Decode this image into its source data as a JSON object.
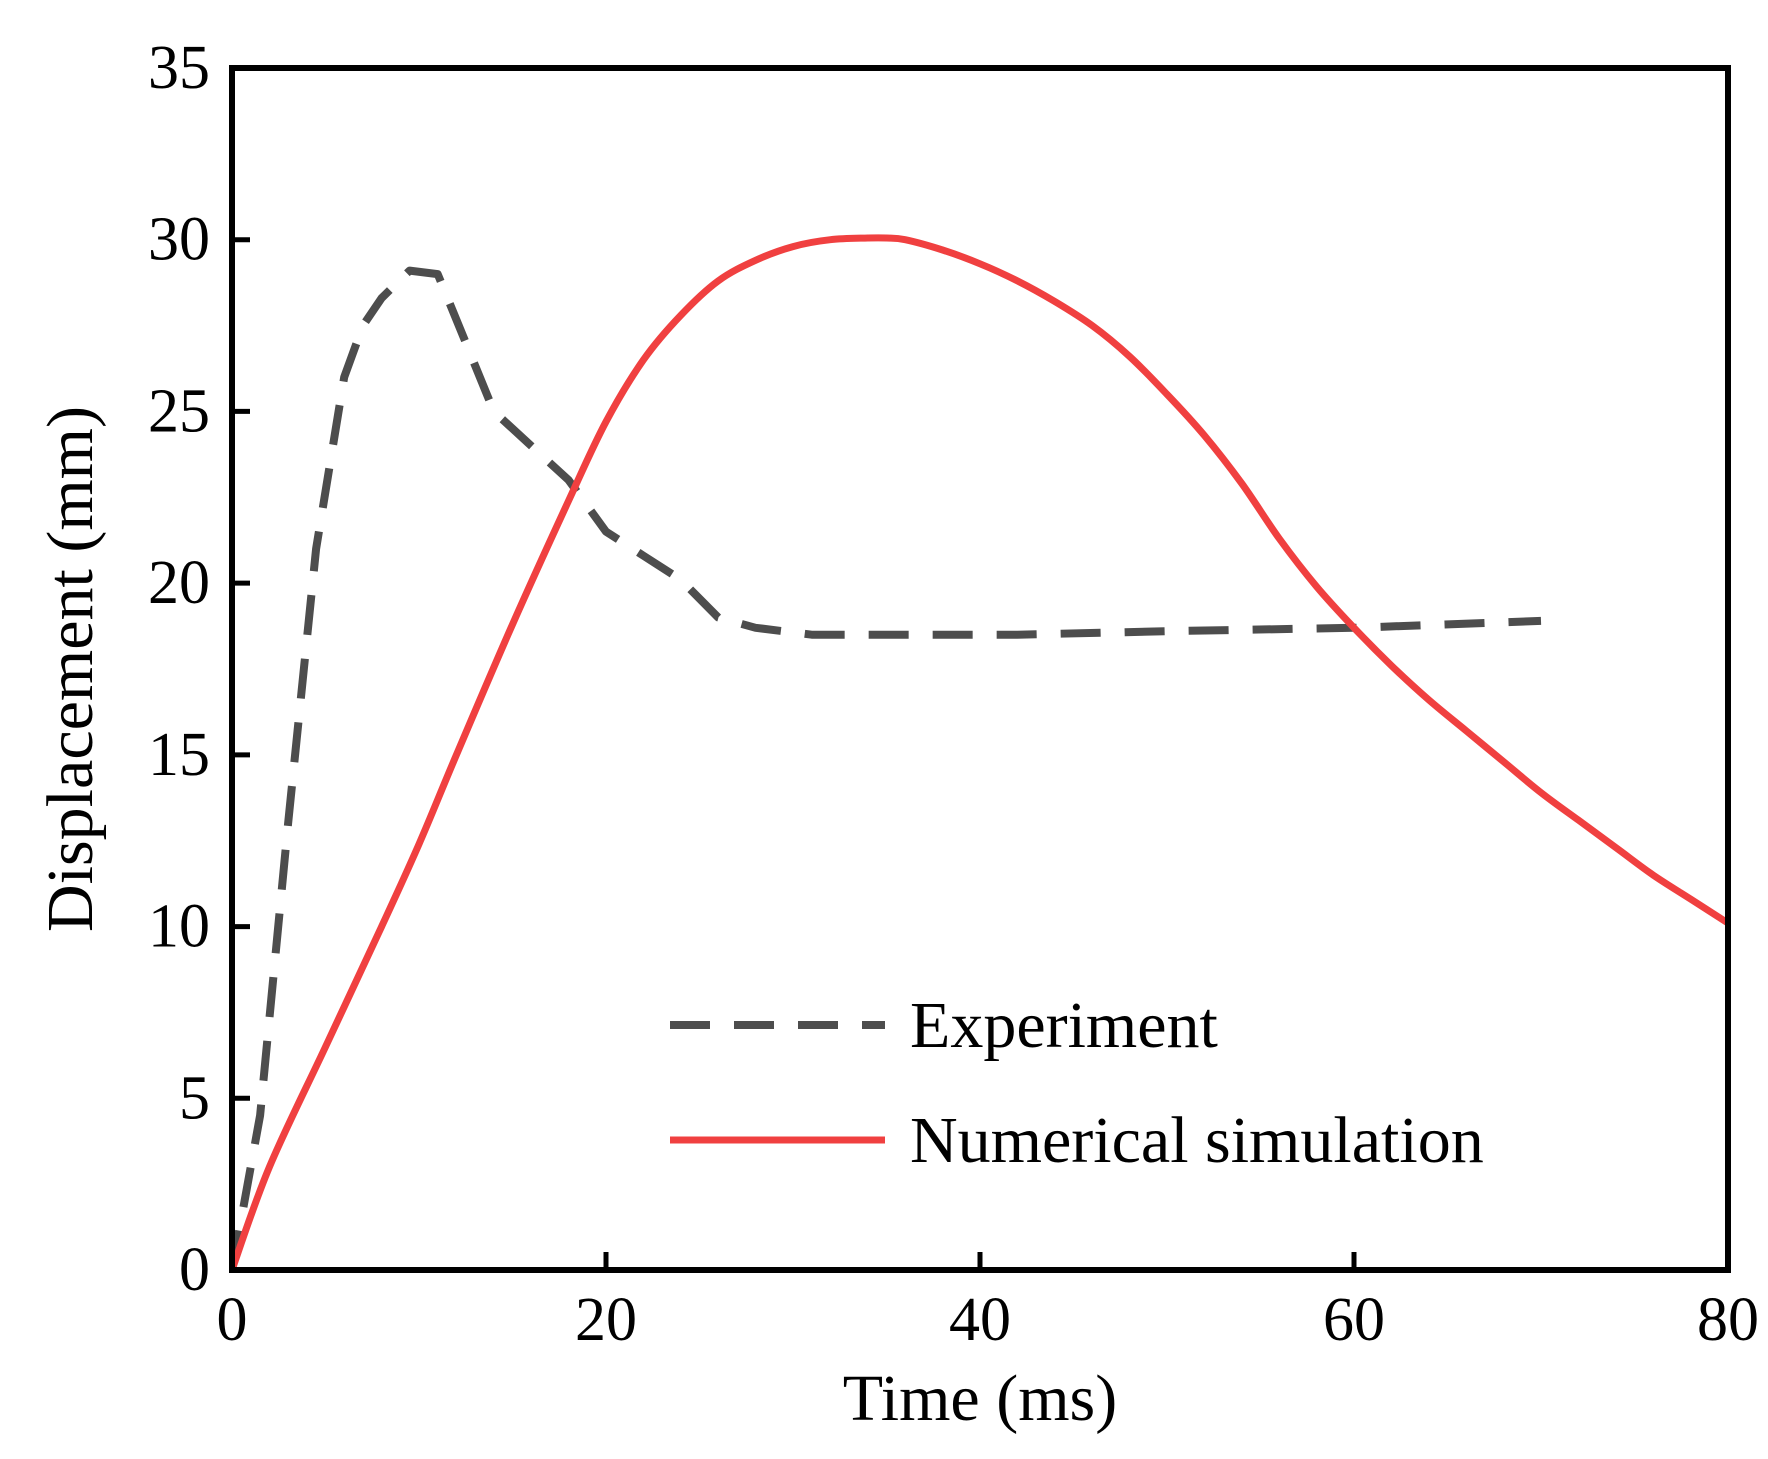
{
  "chart_data": {
    "type": "line",
    "title": "",
    "xlabel": "Time (ms)",
    "ylabel": "Displacement (mm)",
    "xlim": [
      0,
      80
    ],
    "ylim": [
      0,
      35
    ],
    "xticks": [
      0,
      20,
      40,
      60,
      80
    ],
    "yticks": [
      0,
      5,
      10,
      15,
      20,
      25,
      30,
      35
    ],
    "grid": false,
    "legend_position": "bottom-right",
    "series": [
      {
        "name": "Experiment",
        "style": "dashed",
        "color": "#4d4d4d",
        "x": [
          0,
          1.5,
          3,
          4.5,
          6,
          7,
          8,
          9.5,
          11,
          12.5,
          14,
          16,
          18,
          20,
          22,
          24,
          26,
          28,
          31,
          35,
          42,
          50,
          60,
          70
        ],
        "y": [
          0,
          4.5,
          13,
          21,
          26,
          27.5,
          28.3,
          29.1,
          29.0,
          27,
          25,
          24,
          23,
          21.5,
          20.8,
          20.1,
          19.0,
          18.7,
          18.5,
          18.5,
          18.5,
          18.6,
          18.7,
          18.9
        ]
      },
      {
        "name": "Numerical simulation",
        "style": "solid",
        "color": "#f04040",
        "x": [
          0,
          2,
          5,
          8,
          10,
          12,
          15,
          18,
          20,
          22,
          24,
          26,
          28,
          30,
          32,
          34,
          35,
          36,
          38,
          40,
          42,
          44,
          46,
          48,
          50,
          52,
          54,
          56,
          58,
          60,
          62,
          64,
          66,
          68,
          70,
          72,
          74,
          76,
          78,
          80
        ],
        "y": [
          0,
          3,
          6.5,
          10,
          12.4,
          15,
          18.8,
          22.4,
          24.7,
          26.5,
          27.8,
          28.8,
          29.4,
          29.8,
          30.0,
          30.05,
          30.05,
          30.0,
          29.7,
          29.3,
          28.8,
          28.2,
          27.5,
          26.6,
          25.5,
          24.3,
          22.9,
          21.3,
          19.9,
          18.7,
          17.6,
          16.6,
          15.7,
          14.8,
          13.9,
          13.1,
          12.3,
          11.5,
          10.8,
          10.1
        ]
      }
    ]
  }
}
